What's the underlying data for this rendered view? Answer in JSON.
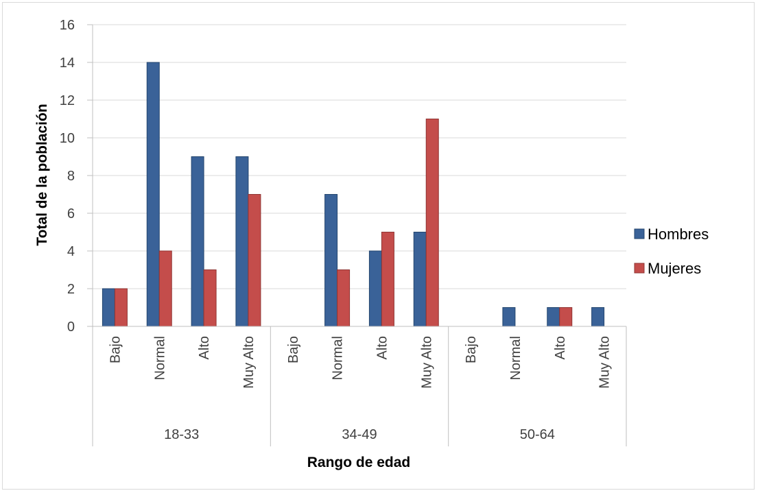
{
  "chart_data": {
    "type": "bar",
    "title": "",
    "xlabel": "Rango de edad",
    "ylabel": "Total de la población",
    "ylim": [
      0,
      16
    ],
    "yticks": [
      0,
      2,
      4,
      6,
      8,
      10,
      12,
      14,
      16
    ],
    "grid": true,
    "legend_position": "right",
    "groups": [
      {
        "label": "18-33",
        "categories": [
          "Bajo",
          "Normal",
          "Alto",
          "Muy Alto"
        ]
      },
      {
        "label": "34-49",
        "categories": [
          "Bajo",
          "Normal",
          "Alto",
          "Muy Alto"
        ]
      },
      {
        "label": "50-64",
        "categories": [
          "Bajo",
          "Normal",
          "Alto",
          "Muy Alto"
        ]
      }
    ],
    "series": [
      {
        "name": "Hombres",
        "color": "#3a6298",
        "values": [
          2,
          14,
          9,
          9,
          0,
          7,
          4,
          5,
          0,
          1,
          1,
          1
        ]
      },
      {
        "name": "Mujeres",
        "color": "#c44d4b",
        "values": [
          2,
          4,
          3,
          7,
          0,
          3,
          5,
          11,
          0,
          0,
          1,
          0
        ]
      }
    ]
  }
}
